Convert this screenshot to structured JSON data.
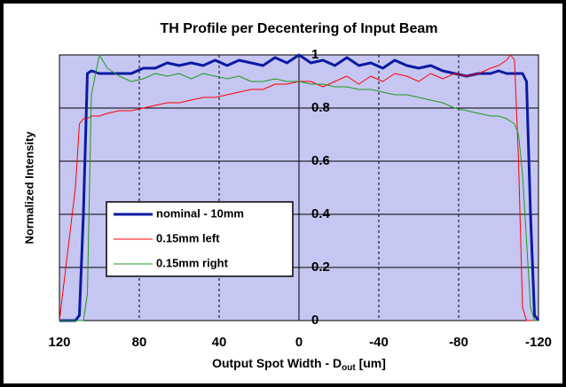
{
  "chart_data": {
    "type": "line",
    "title": "TH Profile per Decentering of Input Beam",
    "xlabel": [
      "Output Spot Width - D",
      "out",
      " [um]"
    ],
    "ylabel": "Normalized Intensity",
    "x": [
      120,
      112,
      110,
      108,
      106,
      104,
      100,
      96,
      90,
      84,
      78,
      72,
      66,
      60,
      54,
      48,
      42,
      36,
      30,
      24,
      18,
      12,
      6,
      0,
      -6,
      -12,
      -18,
      -24,
      -30,
      -36,
      -42,
      -48,
      -54,
      -60,
      -66,
      -72,
      -78,
      -84,
      -90,
      -96,
      -100,
      -104,
      -106,
      -108,
      -110,
      -112,
      -114,
      -116,
      -118,
      -120
    ],
    "series": [
      {
        "name": "nominal - 10mm",
        "color": "#0a1aa0",
        "width": 3,
        "values": [
          0,
          0,
          0.02,
          0.4,
          0.93,
          0.94,
          0.93,
          0.93,
          0.93,
          0.93,
          0.95,
          0.95,
          0.97,
          0.96,
          0.97,
          0.96,
          0.98,
          0.96,
          0.98,
          0.97,
          0.96,
          0.99,
          0.97,
          1.0,
          0.97,
          0.98,
          0.96,
          0.99,
          0.96,
          0.97,
          0.95,
          0.98,
          0.96,
          0.95,
          0.96,
          0.94,
          0.93,
          0.92,
          0.93,
          0.93,
          0.94,
          0.93,
          0.93,
          0.93,
          0.93,
          0.93,
          0.9,
          0.4,
          0.02,
          0
        ]
      },
      {
        "name": "0.15mm left",
        "color": "#ff0000",
        "width": 1,
        "values": [
          0,
          0.5,
          0.74,
          0.76,
          0.76,
          0.77,
          0.77,
          0.78,
          0.79,
          0.79,
          0.8,
          0.81,
          0.82,
          0.82,
          0.83,
          0.84,
          0.84,
          0.85,
          0.86,
          0.87,
          0.87,
          0.89,
          0.89,
          0.9,
          0.9,
          0.88,
          0.9,
          0.92,
          0.89,
          0.92,
          0.9,
          0.93,
          0.92,
          0.9,
          0.93,
          0.91,
          0.93,
          0.92,
          0.93,
          0.95,
          0.96,
          0.98,
          1.0,
          0.98,
          0.6,
          0.05,
          0,
          0,
          0,
          0
        ]
      },
      {
        "name": "0.15mm right",
        "color": "#1e9a1e",
        "width": 1,
        "values": [
          0,
          0,
          0,
          0,
          0.1,
          0.85,
          1.0,
          0.95,
          0.92,
          0.9,
          0.91,
          0.93,
          0.92,
          0.93,
          0.91,
          0.93,
          0.92,
          0.91,
          0.92,
          0.9,
          0.9,
          0.91,
          0.9,
          0.9,
          0.89,
          0.89,
          0.88,
          0.88,
          0.87,
          0.87,
          0.86,
          0.85,
          0.85,
          0.84,
          0.83,
          0.82,
          0.8,
          0.79,
          0.78,
          0.77,
          0.77,
          0.76,
          0.75,
          0.74,
          0.7,
          0.55,
          0.3,
          0.05,
          0,
          0
        ]
      }
    ],
    "xlim": [
      120,
      -120
    ],
    "xticks": [
      120,
      80,
      40,
      0,
      -40,
      -80,
      -120
    ],
    "ylim": [
      0,
      1
    ],
    "yticks": [
      0,
      0.2,
      0.4,
      0.6,
      0.8,
      1
    ],
    "grid": true,
    "legend": "lower left",
    "background": "#c6c6f2"
  }
}
